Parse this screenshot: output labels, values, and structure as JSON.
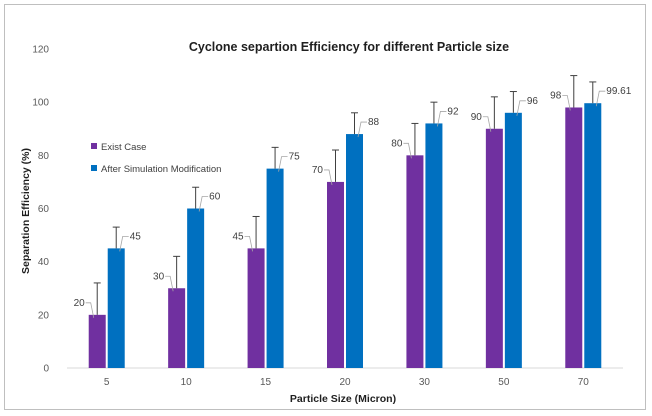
{
  "chart_data": {
    "type": "bar",
    "title": "Cyclone separtion Efficiency for different Particle size",
    "xlabel": "Particle Size (Micron)",
    "ylabel": "Separation Efficiency (%)",
    "ylim": [
      0,
      120
    ],
    "yticks": [
      "0",
      "20",
      "40",
      "60",
      "80",
      "100",
      "120"
    ],
    "grid": false,
    "legend_position": "left",
    "categories": [
      "5",
      "10",
      "15",
      "20",
      "30",
      "50",
      "70"
    ],
    "series": [
      {
        "name": "Exist Case",
        "color": "#7030a0",
        "values": [
          20,
          30,
          45,
          70,
          80,
          90,
          98
        ],
        "labels": [
          "20",
          "30",
          "45",
          "70",
          "80",
          "90",
          "98"
        ],
        "error": 12
      },
      {
        "name": "After Simulation Modification",
        "color": "#0070c0",
        "values": [
          45,
          60,
          75,
          88,
          92,
          96,
          99.61
        ],
        "labels": [
          "45",
          "60",
          "75",
          "88",
          "92",
          "96",
          "99.61"
        ],
        "error": 8
      }
    ]
  }
}
